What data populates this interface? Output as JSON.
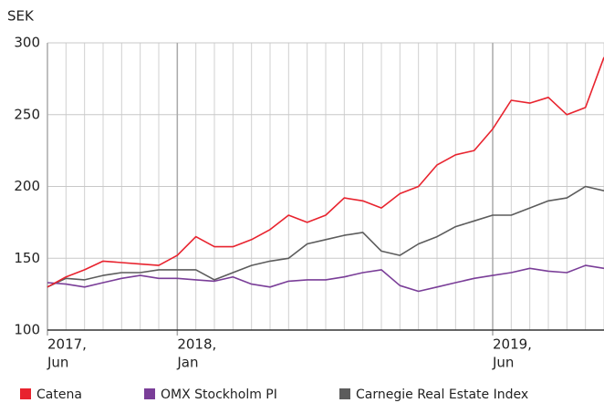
{
  "chart_data": {
    "type": "line",
    "y_label": "SEK",
    "x": [
      "2017-06",
      "2017-07",
      "2017-08",
      "2017-09",
      "2017-10",
      "2017-11",
      "2017-12",
      "2018-01",
      "2018-02",
      "2018-03",
      "2018-04",
      "2018-05",
      "2018-06",
      "2018-07",
      "2018-08",
      "2018-09",
      "2018-10",
      "2018-11",
      "2018-12",
      "2019-01",
      "2019-02",
      "2019-03",
      "2019-04",
      "2019-05",
      "2019-06",
      "2019-07",
      "2019-08",
      "2019-09",
      "2019-10",
      "2019-11",
      "2019-12"
    ],
    "xlim": [
      "2017-06",
      "2019-12"
    ],
    "xticks": [
      {
        "value": "2017-06",
        "label": [
          "2017,",
          "Jun"
        ]
      },
      {
        "value": "2018-01",
        "label": [
          "2018,",
          "Jan"
        ]
      },
      {
        "value": "2019-06",
        "label": [
          "2019,",
          "Jun"
        ]
      }
    ],
    "ylim": [
      100,
      300
    ],
    "yticks": [
      100,
      150,
      200,
      250,
      300
    ],
    "grid": true,
    "legend": "bottom",
    "series": [
      {
        "name": "Catena",
        "color": "#e8232e",
        "values": [
          130,
          137,
          142,
          148,
          147,
          146,
          145,
          152,
          165,
          158,
          158,
          163,
          170,
          180,
          175,
          180,
          192,
          190,
          185,
          195,
          200,
          215,
          222,
          225,
          240,
          260,
          258,
          262,
          250,
          255,
          290
        ]
      },
      {
        "name": "OMX Stockholm PI",
        "color": "#7a3e98",
        "values": [
          133,
          132,
          130,
          133,
          136,
          138,
          136,
          136,
          135,
          134,
          137,
          132,
          130,
          134,
          135,
          135,
          137,
          140,
          142,
          131,
          127,
          130,
          133,
          136,
          138,
          140,
          143,
          141,
          140,
          145,
          143
        ]
      },
      {
        "name": "Carnegie Real Estate Index",
        "color": "#5c5c5c",
        "values": [
          130,
          136,
          135,
          138,
          140,
          140,
          142,
          142,
          142,
          135,
          140,
          145,
          148,
          150,
          160,
          163,
          166,
          168,
          155,
          152,
          160,
          165,
          172,
          176,
          180,
          180,
          185,
          190,
          192,
          200,
          197
        ]
      }
    ]
  }
}
